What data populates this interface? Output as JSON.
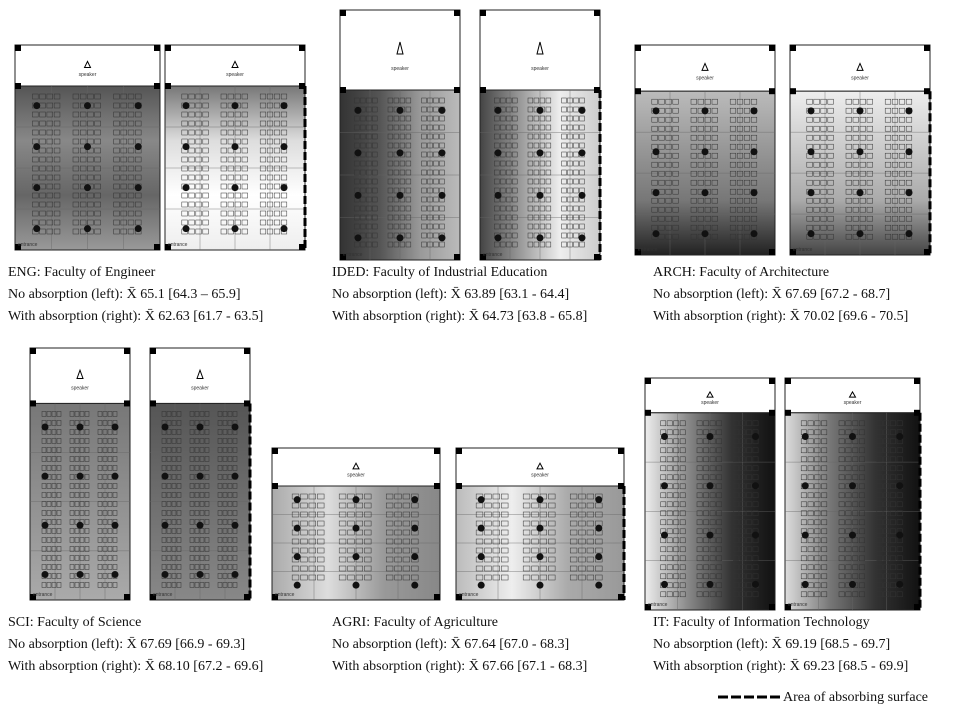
{
  "labels": {
    "speaker": "speaker",
    "entrance": "entrance"
  },
  "panels": [
    {
      "title": "ENG: Faculty of Engineer",
      "no_absorption": "No absorption (left):  X̄ 65.1 [64.3 – 65.9]",
      "with_absorption": "With absorption (right): X̄ 62.63 [61.7 - 63.5]"
    },
    {
      "title": "IDED: Faculty of Industrial Education",
      "no_absorption": "No absorption (left):  X̄ 63.89 [63.1 - 64.4]",
      "with_absorption": "With absorption (right):  X̄ 64.73 [63.8 - 65.8]"
    },
    {
      "title": "ARCH: Faculty of Architecture",
      "no_absorption": "No absorption (left):  X̄ 67.69 [67.2 - 68.7]",
      "with_absorption": "With absorption (right):  X̄ 70.02 [69.6 - 70.5]"
    },
    {
      "title": "SCI: Faculty of Science",
      "no_absorption": "No absorption (left):  X̄ 67.69 [66.9 - 69.3]",
      "with_absorption": "With absorption (right): X̄ 68.10 [67.2 - 69.6]"
    },
    {
      "title": "AGRI: Faculty of Agriculture",
      "no_absorption": "No absorption (left):  X̄ 67.64 [67.0 - 68.3]",
      "with_absorption": "With absorption (right):  X̄ 67.66 [67.1 - 68.3]"
    },
    {
      "title": "IT: Faculty of Information Technology",
      "no_absorption": "No absorption (left):  X̄ 69.19 [68.5 - 69.7]",
      "with_absorption": "With absorption (right):  X̄ 69.23 [68.5 - 69.9]"
    }
  ],
  "legend": "Area of absorbing surface"
}
